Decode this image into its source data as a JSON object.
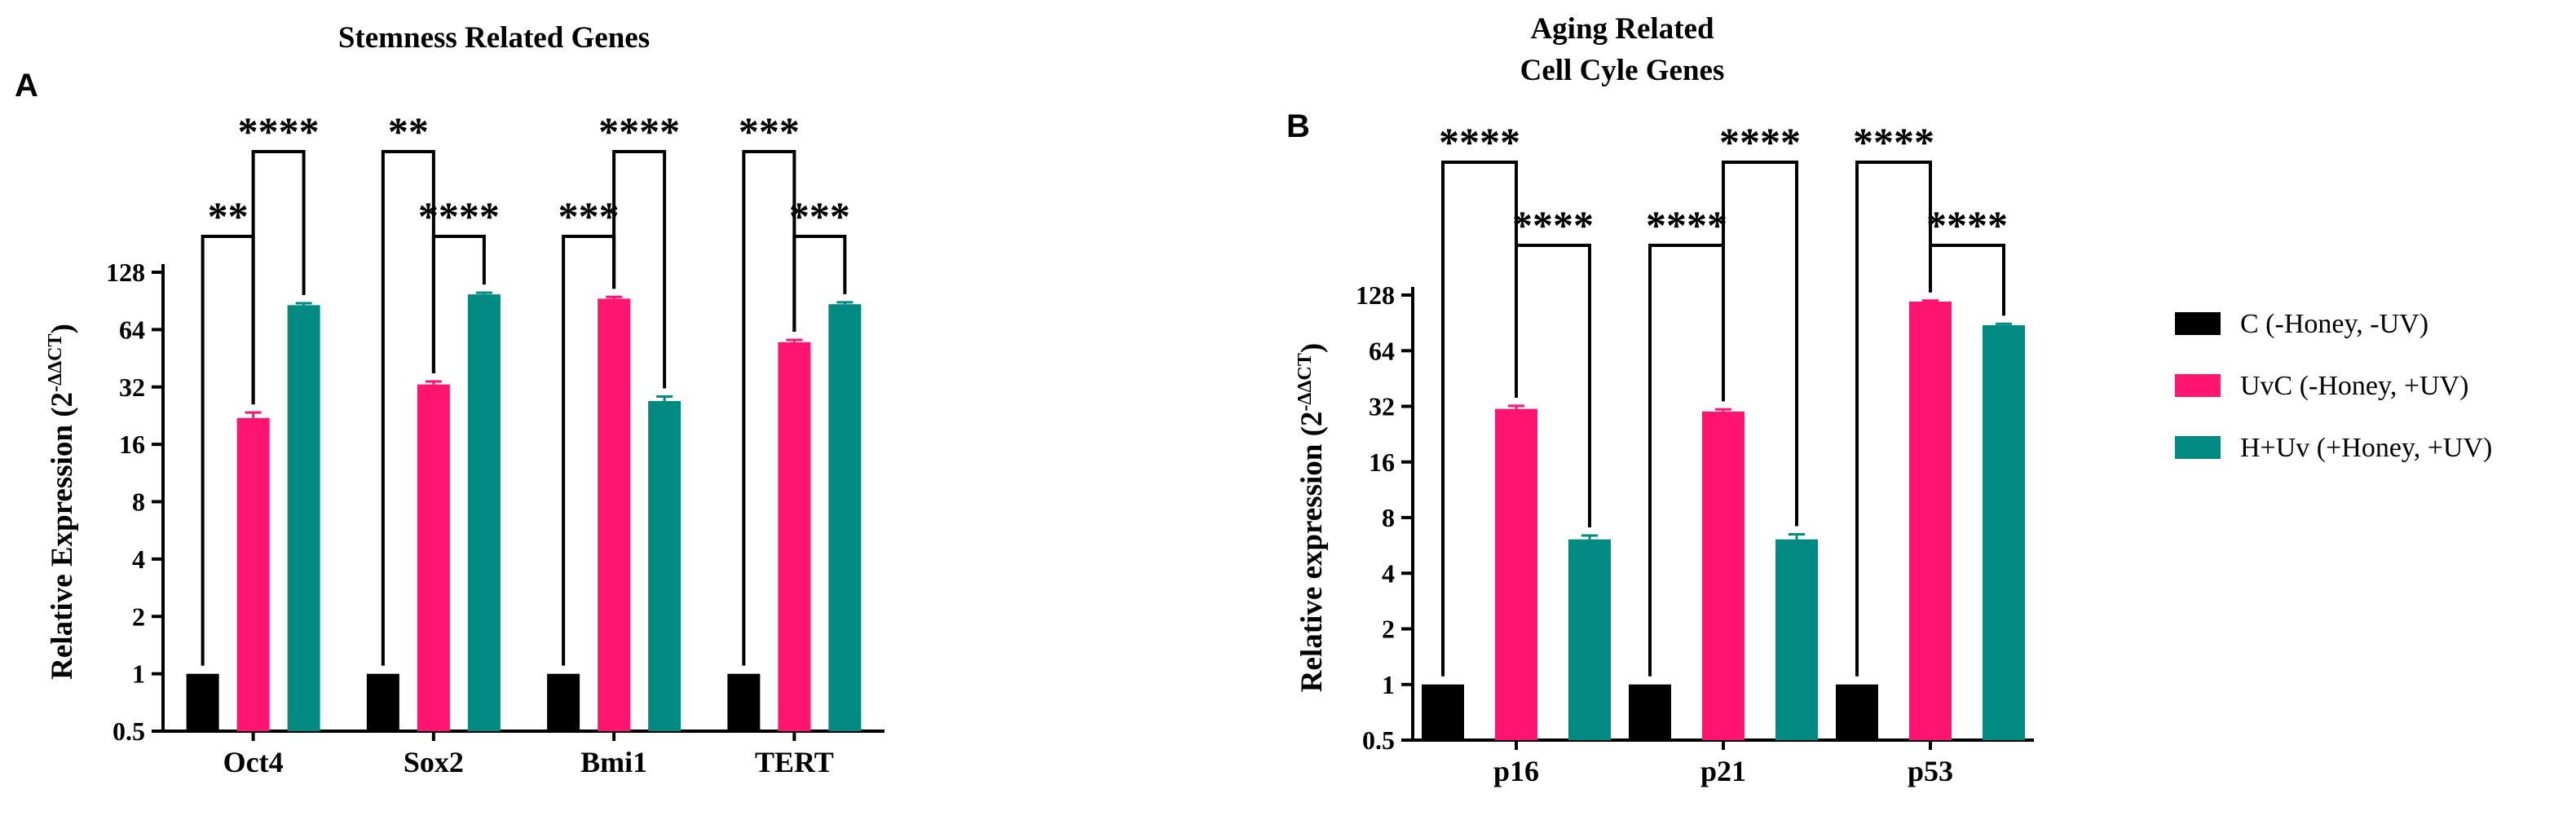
{
  "chart_data": [
    {
      "type": "bar",
      "panel": "A",
      "title": "Stemness Related Genes",
      "ylabel_main": "Relative Expression (2",
      "ylabel_sup": "-ΔΔCT",
      "ylabel_end": ")",
      "yscale": "log2",
      "ylim": [
        0.5,
        128
      ],
      "yticks": [
        "0.5",
        "1",
        "2",
        "4",
        "8",
        "16",
        "32",
        "64",
        "128"
      ],
      "categories": [
        "Oct4",
        "Sox2",
        "Bmi1",
        "TERT"
      ],
      "series": [
        {
          "name": "C (-Honey, -UV)",
          "values": [
            1,
            1,
            1,
            1
          ],
          "errors": [
            0,
            0,
            0,
            0
          ]
        },
        {
          "name": "UvC (-Honey, +UV)",
          "values": [
            22,
            33,
            93,
            55
          ],
          "errors": [
            1.5,
            1.2,
            2,
            1.5
          ]
        },
        {
          "name": "H+Uv  (+Honey, +UV)",
          "values": [
            86,
            98,
            27,
            87
          ],
          "errors": [
            2,
            2,
            1.5,
            2
          ]
        }
      ],
      "significance": [
        {
          "category": "Oct4",
          "pair": "C-UvC",
          "label": "**",
          "level": 2
        },
        {
          "category": "Oct4",
          "pair": "UvC-H",
          "label": "****",
          "level": 1
        },
        {
          "category": "Sox2",
          "pair": "C-UvC",
          "label": "**",
          "level": 1
        },
        {
          "category": "Sox2",
          "pair": "UvC-H",
          "label": "****",
          "level": 2
        },
        {
          "category": "Bmi1",
          "pair": "C-UvC",
          "label": "***",
          "level": 2
        },
        {
          "category": "Bmi1",
          "pair": "UvC-H",
          "label": "****",
          "level": 1
        },
        {
          "category": "TERT",
          "pair": "C-UvC",
          "label": "***",
          "level": 1
        },
        {
          "category": "TERT",
          "pair": "UvC-H",
          "label": "***",
          "level": 2
        }
      ]
    },
    {
      "type": "bar",
      "panel": "B",
      "title_lines": [
        "Aging Related",
        "Cell Cyle Genes"
      ],
      "ylabel_main": "Relative expression (2",
      "ylabel_sup": "-ΔΔCT",
      "ylabel_end": ")",
      "yscale": "log2",
      "ylim": [
        0.5,
        128
      ],
      "yticks": [
        "0.5",
        "1",
        "2",
        "4",
        "8",
        "16",
        "32",
        "64",
        "128"
      ],
      "categories": [
        "p16",
        "p21",
        "p53"
      ],
      "series": [
        {
          "name": "C (-Honey, -UV)",
          "values": [
            1,
            1,
            1
          ],
          "errors": [
            0,
            0,
            0
          ]
        },
        {
          "name": "UvC (-Honey, +UV)",
          "values": [
            31,
            30,
            118
          ],
          "errors": [
            1.2,
            0.8,
            1.5
          ]
        },
        {
          "name": "H+Uv  (+Honey, +UV)",
          "values": [
            6.1,
            6.1,
            88
          ],
          "errors": [
            0.3,
            0.4,
            1.5
          ]
        }
      ],
      "significance": [
        {
          "category": "p16",
          "pair": "C-UvC",
          "label": "****",
          "level": 1
        },
        {
          "category": "p16",
          "pair": "UvC-H",
          "label": "****",
          "level": 2
        },
        {
          "category": "p21",
          "pair": "C-UvC",
          "label": "****",
          "level": 2
        },
        {
          "category": "p21",
          "pair": "UvC-H",
          "label": "****",
          "level": 1
        },
        {
          "category": "p53",
          "pair": "C-UvC",
          "label": "****",
          "level": 1
        },
        {
          "category": "p53",
          "pair": "UvC-H",
          "label": "****",
          "level": 2
        }
      ]
    }
  ],
  "legend": {
    "items": [
      {
        "label": "C (-Honey, -UV)",
        "color": "#000000"
      },
      {
        "label": "UvC (-Honey, +UV)",
        "color": "#ff1470"
      },
      {
        "label": "H+Uv  (+Honey, +UV)",
        "color": "#008a82"
      }
    ]
  }
}
